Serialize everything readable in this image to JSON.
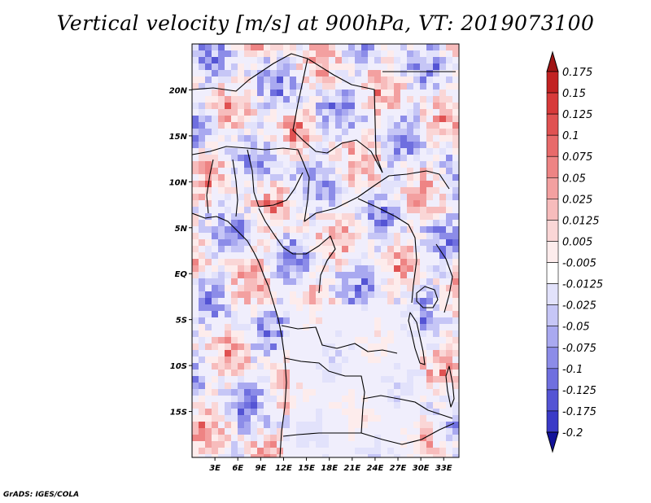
{
  "title": "Vertical velocity [m/s] at 900hPa, VT: 2019073100",
  "credit": "GrADS: IGES/COLA",
  "map": {
    "lon_range": [
      0,
      35
    ],
    "lat_range": [
      -20,
      25
    ],
    "lon_ticks": [
      {
        "value": 3,
        "label": "3E"
      },
      {
        "value": 6,
        "label": "6E"
      },
      {
        "value": 9,
        "label": "9E"
      },
      {
        "value": 12,
        "label": "12E"
      },
      {
        "value": 15,
        "label": "15E"
      },
      {
        "value": 18,
        "label": "18E"
      },
      {
        "value": 21,
        "label": "21E"
      },
      {
        "value": 24,
        "label": "24E"
      },
      {
        "value": 27,
        "label": "27E"
      },
      {
        "value": 30,
        "label": "30E"
      },
      {
        "value": 33,
        "label": "33E"
      }
    ],
    "lat_ticks": [
      {
        "value": 20,
        "label": "20N"
      },
      {
        "value": 15,
        "label": "15N"
      },
      {
        "value": 10,
        "label": "10N"
      },
      {
        "value": 5,
        "label": "5N"
      },
      {
        "value": 0,
        "label": "EQ"
      },
      {
        "value": -5,
        "label": "5S"
      },
      {
        "value": -10,
        "label": "10S"
      },
      {
        "value": -15,
        "label": "15S"
      }
    ]
  },
  "colorbar": {
    "levels": [
      {
        "label": "0.175",
        "color": "#c22222"
      },
      {
        "label": "0.15",
        "color": "#d73a3a"
      },
      {
        "label": "0.125",
        "color": "#e05252"
      },
      {
        "label": "0.1",
        "color": "#e86a6a"
      },
      {
        "label": "0.075",
        "color": "#ee8484"
      },
      {
        "label": "0.05",
        "color": "#f3a0a0"
      },
      {
        "label": "0.025",
        "color": "#f7bcbc"
      },
      {
        "label": "0.0125",
        "color": "#fad6d6"
      },
      {
        "label": "0.005",
        "color": "#fdecec"
      },
      {
        "label": "-0.005",
        "color": "#ffffff"
      },
      {
        "label": "-0.0125",
        "color": "#e2e2fb"
      },
      {
        "label": "-0.025",
        "color": "#c6c6f6"
      },
      {
        "label": "-0.05",
        "color": "#a9a9f0"
      },
      {
        "label": "-0.075",
        "color": "#8c8ce8"
      },
      {
        "label": "-0.1",
        "color": "#6f6fdf"
      },
      {
        "label": "-0.125",
        "color": "#5454d4"
      },
      {
        "label": "-0.175",
        "color": "#3a3ac7"
      },
      {
        "label": "-0.2",
        "color": "#2323b0"
      }
    ],
    "top_color": "#a01515",
    "bottom_color": "#12129a"
  }
}
